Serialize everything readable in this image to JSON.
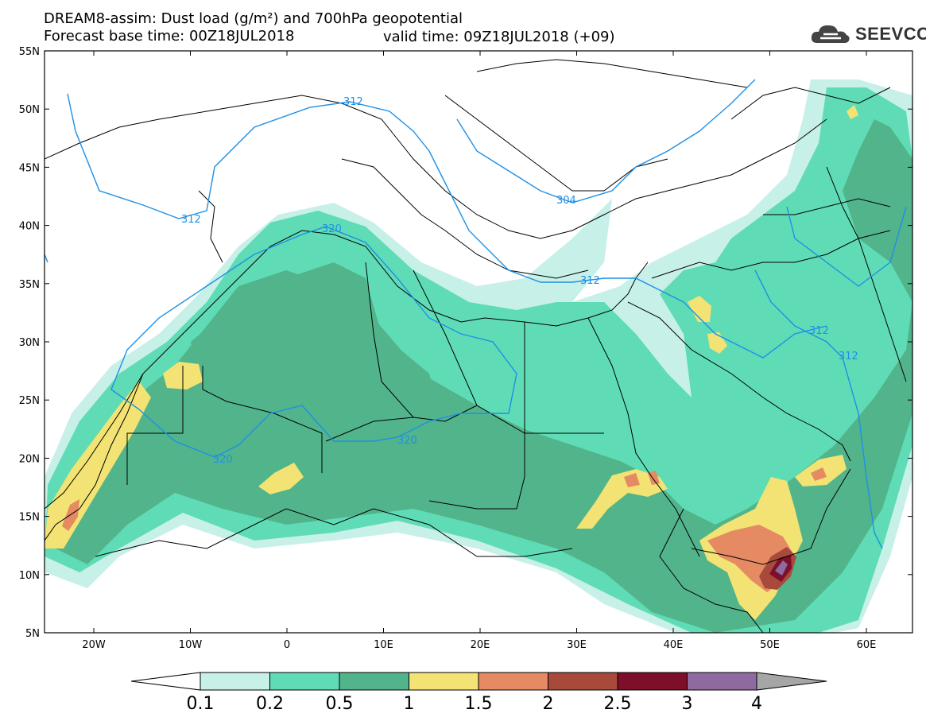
{
  "header": {
    "title_line1": "DREAM8-assim: Dust load (g/m²) and 700hPa geopotential",
    "title_line2": "Forecast base time: 00Z18JUL2018",
    "valid_time": "valid time: 09Z18JUL2018 (+09)",
    "logo_text": "SEEVCCC",
    "logo_icon": "cloud-logo-icon"
  },
  "map": {
    "lat_labels": [
      "55N",
      "50N",
      "45N",
      "40N",
      "35N",
      "30N",
      "25N",
      "20N",
      "15N",
      "10N",
      "5N"
    ],
    "lon_labels": [
      "20W",
      "10W",
      "0",
      "10E",
      "20E",
      "30E",
      "40E",
      "50E",
      "60E"
    ],
    "contour_labels": [
      "312",
      "312",
      "320",
      "304",
      "312",
      "312",
      "312",
      "320",
      "320"
    ],
    "contour_color": "#1e90e6"
  },
  "colorbar": {
    "levels": [
      "0.1",
      "0.2",
      "0.5",
      "1",
      "1.5",
      "2",
      "2.5",
      "3",
      "4"
    ],
    "colors": [
      "#c7f0e8",
      "#5fdcb5",
      "#52b48b",
      "#f2e374",
      "#e58a62",
      "#a84a3b",
      "#7d0f2a",
      "#8e6aa0"
    ],
    "under_color": "#ffffff",
    "over_color": "#a6a6a6"
  },
  "colors": {
    "dust_very_light": "#c7f0e8",
    "dust_light": "#5fdcb5",
    "dust_medium": "#52b48b",
    "dust_yellow": "#f2e374",
    "dust_orange": "#e58a62",
    "dust_red": "#a84a3b",
    "dust_maroon": "#7d0f2a",
    "dust_purple": "#8e6aa0",
    "border": "#000000"
  }
}
